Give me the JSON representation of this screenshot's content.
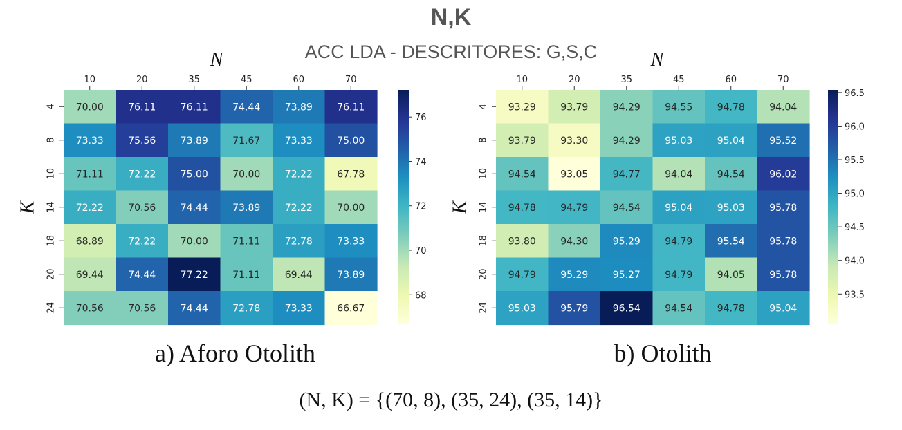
{
  "title": "N,K",
  "subtitle": "ACC LDA - DESCRITORES: G,S,C",
  "formula": "(N, K) = {(70, 8), (35, 24), (35, 14)}",
  "chart_data": [
    {
      "type": "heatmap",
      "caption": "a) Aforo Otolith",
      "xlabel": "N",
      "ylabel": "K",
      "x": [
        "10",
        "20",
        "35",
        "45",
        "60",
        "70"
      ],
      "y": [
        "4",
        "8",
        "10",
        "14",
        "18",
        "20",
        "24"
      ],
      "values": [
        [
          70.0,
          76.11,
          76.11,
          74.44,
          73.89,
          76.11
        ],
        [
          73.33,
          75.56,
          73.89,
          71.67,
          73.33,
          75.0
        ],
        [
          71.11,
          72.22,
          75.0,
          70.0,
          72.22,
          67.78
        ],
        [
          72.22,
          70.56,
          74.44,
          73.89,
          72.22,
          70.0
        ],
        [
          68.89,
          72.22,
          70.0,
          71.11,
          72.78,
          73.33
        ],
        [
          69.44,
          74.44,
          77.22,
          71.11,
          69.44,
          73.89
        ],
        [
          70.56,
          70.56,
          74.44,
          72.78,
          73.33,
          66.67
        ]
      ],
      "value_labels": [
        [
          "70.00",
          "76.11",
          "76.11",
          "74.44",
          "73.89",
          "76.11"
        ],
        [
          "73.33",
          "75.56",
          "73.89",
          "71.67",
          "73.33",
          "75.00"
        ],
        [
          "71.11",
          "72.22",
          "75.00",
          "70.00",
          "72.22",
          "67.78"
        ],
        [
          "72.22",
          "70.56",
          "74.44",
          "73.89",
          "72.22",
          "70.00"
        ],
        [
          "68.89",
          "72.22",
          "70.00",
          "71.11",
          "72.78",
          "73.33"
        ],
        [
          "69.44",
          "74.44",
          "77.22",
          "71.11",
          "69.44",
          "73.89"
        ],
        [
          "70.56",
          "70.56",
          "74.44",
          "72.78",
          "73.33",
          "66.67"
        ]
      ],
      "colorbar": {
        "min": 66.67,
        "max": 77.22,
        "ticks": [
          "68",
          "70",
          "72",
          "74",
          "76"
        ],
        "colormap": "YlGnBu"
      }
    },
    {
      "type": "heatmap",
      "caption": "b) Otolith",
      "xlabel": "N",
      "ylabel": "K",
      "x": [
        "10",
        "20",
        "35",
        "45",
        "60",
        "70"
      ],
      "y": [
        "4",
        "8",
        "10",
        "14",
        "18",
        "20",
        "24"
      ],
      "values": [
        [
          93.29,
          93.79,
          94.29,
          94.55,
          94.78,
          94.04
        ],
        [
          93.79,
          93.3,
          94.29,
          95.03,
          95.04,
          95.52
        ],
        [
          94.54,
          93.05,
          94.77,
          94.04,
          94.54,
          96.02
        ],
        [
          94.78,
          94.79,
          94.54,
          95.04,
          95.03,
          95.78
        ],
        [
          93.8,
          94.3,
          95.29,
          94.79,
          95.54,
          95.78
        ],
        [
          94.79,
          95.29,
          95.27,
          94.79,
          94.05,
          95.78
        ],
        [
          95.03,
          95.79,
          96.54,
          94.54,
          94.78,
          95.04
        ]
      ],
      "value_labels": [
        [
          "93.29",
          "93.79",
          "94.29",
          "94.55",
          "94.78",
          "94.04"
        ],
        [
          "93.79",
          "93.30",
          "94.29",
          "95.03",
          "95.04",
          "95.52"
        ],
        [
          "94.54",
          "93.05",
          "94.77",
          "94.04",
          "94.54",
          "96.02"
        ],
        [
          "94.78",
          "94.79",
          "94.54",
          "95.04",
          "95.03",
          "95.78"
        ],
        [
          "93.80",
          "94.30",
          "95.29",
          "94.79",
          "95.54",
          "95.78"
        ],
        [
          "94.79",
          "95.29",
          "95.27",
          "94.79",
          "94.05",
          "95.78"
        ],
        [
          "95.03",
          "95.79",
          "96.54",
          "94.54",
          "94.78",
          "95.04"
        ]
      ],
      "colorbar": {
        "min": 93.05,
        "max": 96.54,
        "ticks": [
          "93.5",
          "94.0",
          "94.5",
          "95.0",
          "95.5",
          "96.0",
          "96.5"
        ],
        "colormap": "YlGnBu"
      }
    }
  ]
}
